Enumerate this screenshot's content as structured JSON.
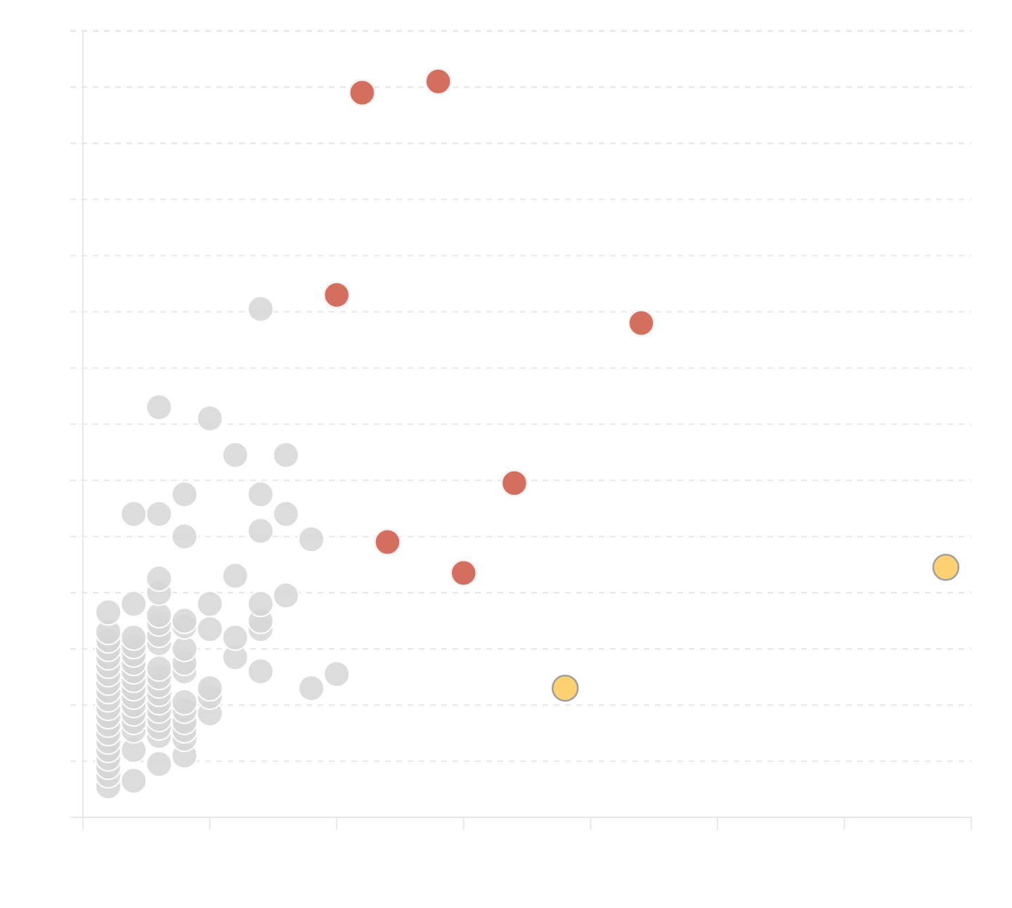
{
  "chart_data": {
    "type": "scatter",
    "title": "",
    "xlabel": "",
    "ylabel": "",
    "xlim": [
      -1,
      69
    ],
    "ylim": [
      0,
      28
    ],
    "x_ticks": [
      -1,
      9,
      19,
      29,
      39,
      49,
      59,
      69
    ],
    "y_ticks": [
      0,
      2,
      4,
      6,
      8,
      10,
      12,
      14,
      16,
      18,
      20,
      22,
      24,
      26,
      28
    ],
    "show_tick_labels": false,
    "grid": "y-dashed",
    "colors": {
      "base": "#d6d6d6",
      "highlight_red": "#d46f5f",
      "highlight_yellow": "#fdd072"
    },
    "series": [
      {
        "color": "#d6d6d6",
        "points": [
          [
            1,
            1.1
          ],
          [
            1,
            1.5
          ],
          [
            1,
            1.8
          ],
          [
            1,
            2.1
          ],
          [
            1,
            2.4
          ],
          [
            1,
            2.7
          ],
          [
            1,
            3.0
          ],
          [
            1,
            3.3
          ],
          [
            1,
            3.6
          ],
          [
            1,
            3.9
          ],
          [
            1,
            4.2
          ],
          [
            1,
            4.5
          ],
          [
            1,
            4.8
          ],
          [
            1,
            5.1
          ],
          [
            1,
            5.4
          ],
          [
            1,
            5.7
          ],
          [
            1,
            6.0
          ],
          [
            1,
            6.3
          ],
          [
            1,
            6.6
          ],
          [
            1,
            7.3
          ],
          [
            3,
            1.3
          ],
          [
            3,
            2.4
          ],
          [
            3,
            3.1
          ],
          [
            3,
            3.4
          ],
          [
            3,
            3.7
          ],
          [
            3,
            4.0
          ],
          [
            3,
            4.3
          ],
          [
            3,
            4.6
          ],
          [
            3,
            4.9
          ],
          [
            3,
            5.2
          ],
          [
            3,
            5.5
          ],
          [
            3,
            5.8
          ],
          [
            3,
            6.1
          ],
          [
            3,
            6.4
          ],
          [
            3,
            7.6
          ],
          [
            3,
            10.8
          ],
          [
            5,
            1.9
          ],
          [
            5,
            2.9
          ],
          [
            5,
            3.2
          ],
          [
            5,
            3.5
          ],
          [
            5,
            3.8
          ],
          [
            5,
            4.1
          ],
          [
            5,
            4.4
          ],
          [
            5,
            4.7
          ],
          [
            5,
            5.0
          ],
          [
            5,
            5.3
          ],
          [
            5,
            6.2
          ],
          [
            5,
            6.5
          ],
          [
            5,
            6.9
          ],
          [
            5,
            7.2
          ],
          [
            5,
            8.0
          ],
          [
            5,
            8.5
          ],
          [
            5,
            10.8
          ],
          [
            5,
            14.6
          ],
          [
            7,
            2.2
          ],
          [
            7,
            2.8
          ],
          [
            7,
            3.1
          ],
          [
            7,
            3.4
          ],
          [
            7,
            3.8
          ],
          [
            7,
            4.1
          ],
          [
            7,
            5.2
          ],
          [
            7,
            5.5
          ],
          [
            7,
            6.0
          ],
          [
            7,
            6.8
          ],
          [
            7,
            7.0
          ],
          [
            7,
            10.0
          ],
          [
            7,
            11.5
          ],
          [
            9,
            3.7
          ],
          [
            9,
            4.3
          ],
          [
            9,
            4.6
          ],
          [
            9,
            6.7
          ],
          [
            9,
            7.6
          ],
          [
            9,
            14.2
          ],
          [
            11,
            5.7
          ],
          [
            11,
            6.4
          ],
          [
            11,
            8.6
          ],
          [
            11,
            12.9
          ],
          [
            13,
            5.2
          ],
          [
            13,
            6.7
          ],
          [
            13,
            7.0
          ],
          [
            13,
            7.6
          ],
          [
            13,
            10.2
          ],
          [
            13,
            11.5
          ],
          [
            13,
            18.1
          ],
          [
            15,
            7.9
          ],
          [
            15,
            10.8
          ],
          [
            15,
            12.9
          ],
          [
            17,
            4.6
          ],
          [
            17,
            9.9
          ],
          [
            19,
            5.1
          ]
        ]
      },
      {
        "color": "#d46f5f",
        "points": [
          [
            21,
            25.8
          ],
          [
            27,
            26.2
          ],
          [
            19,
            18.6
          ],
          [
            43,
            17.6
          ],
          [
            33,
            11.9
          ],
          [
            23,
            9.8
          ],
          [
            29,
            8.7
          ]
        ]
      },
      {
        "color": "#fdd072",
        "points": [
          [
            37,
            4.6
          ],
          [
            67,
            8.9
          ]
        ]
      }
    ]
  }
}
